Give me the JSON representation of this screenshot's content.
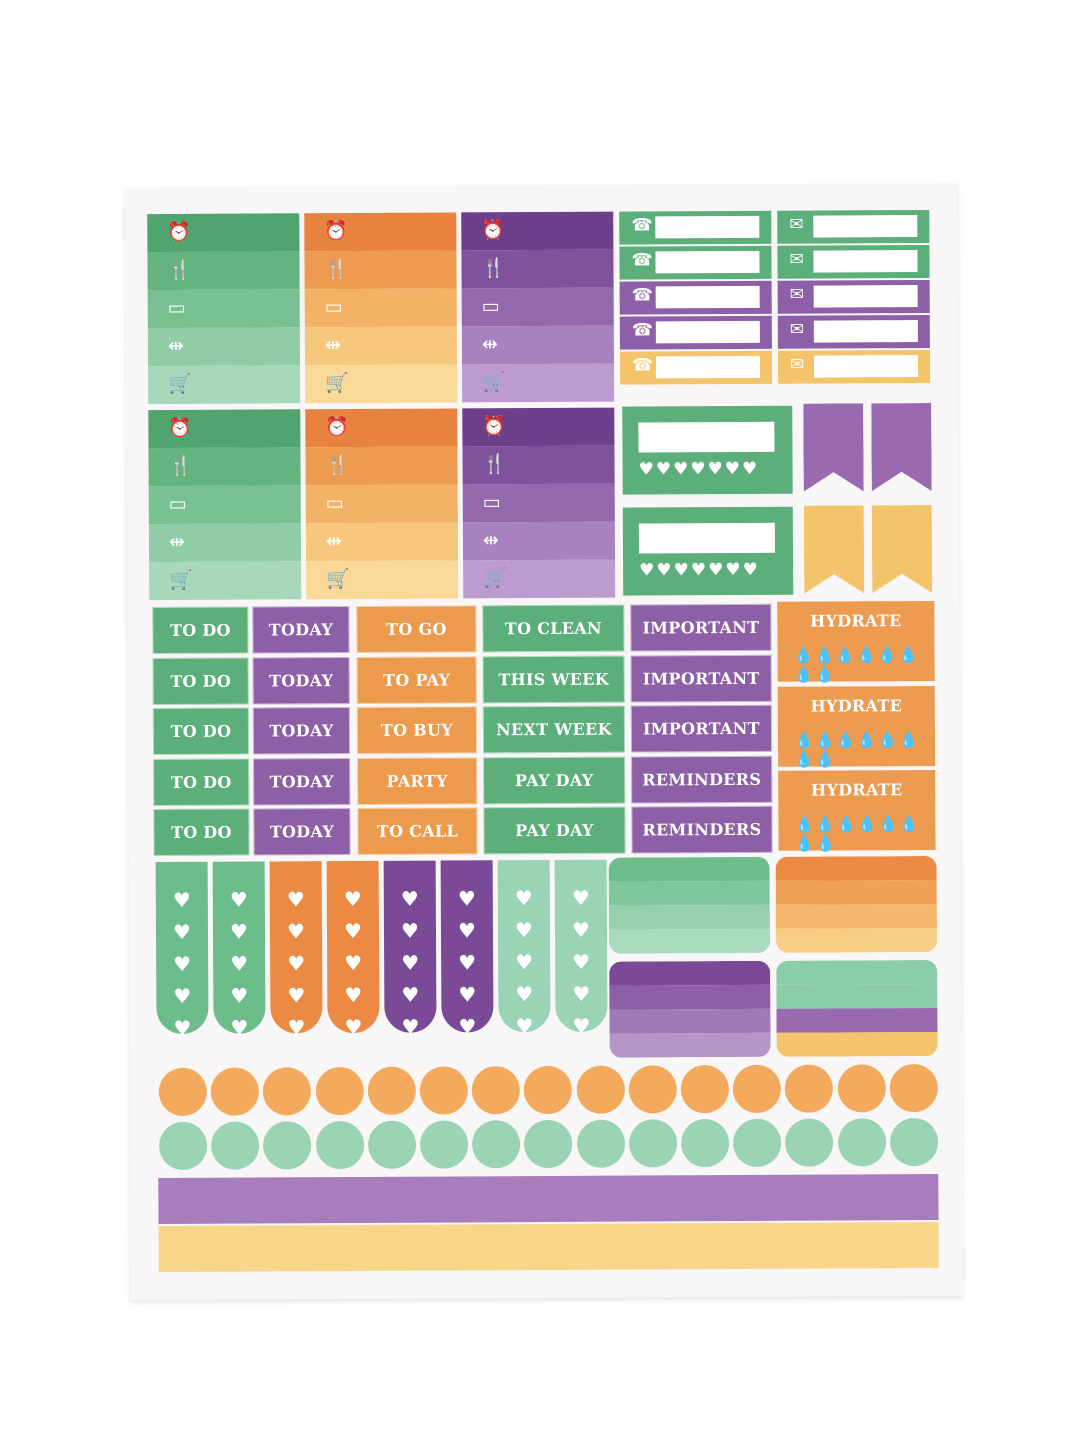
{
  "colors": {
    "green": "#5cae7a",
    "mint": "#8ccda9",
    "orange": "#ec9a4c",
    "yellow": "#f4c46a",
    "purple": "#8c5fa6",
    "lilac": "#a87dbd"
  },
  "icons": [
    "alarm-clock-icon",
    "fork-knife-icon",
    "monitor-icon",
    "dumbbell-icon",
    "shopping-cart-icon"
  ],
  "label_columns": [
    {
      "color": "green",
      "labels": [
        "TO DO",
        "TO DO",
        "TO DO",
        "TO DO",
        "TO DO"
      ]
    },
    {
      "color": "purple",
      "labels": [
        "TODAY",
        "TODAY",
        "TODAY",
        "TODAY",
        "TODAY"
      ]
    },
    {
      "color": "orange",
      "labels": [
        "TO GO",
        "TO PAY",
        "TO BUY",
        "PARTY",
        "TO CALL"
      ]
    },
    {
      "color": "green",
      "labels": [
        "TO CLEAN",
        "THIS WEEK",
        "NEXT WEEK",
        "PAY DAY",
        "PAY DAY"
      ]
    },
    {
      "color": "purple",
      "labels": [
        "IMPORTANT",
        "IMPORTANT",
        "IMPORTANT",
        "REMINDERS",
        "REMINDERS"
      ]
    }
  ],
  "hydrate": [
    "HYDRATE",
    "HYDRATE",
    "HYDRATE"
  ]
}
